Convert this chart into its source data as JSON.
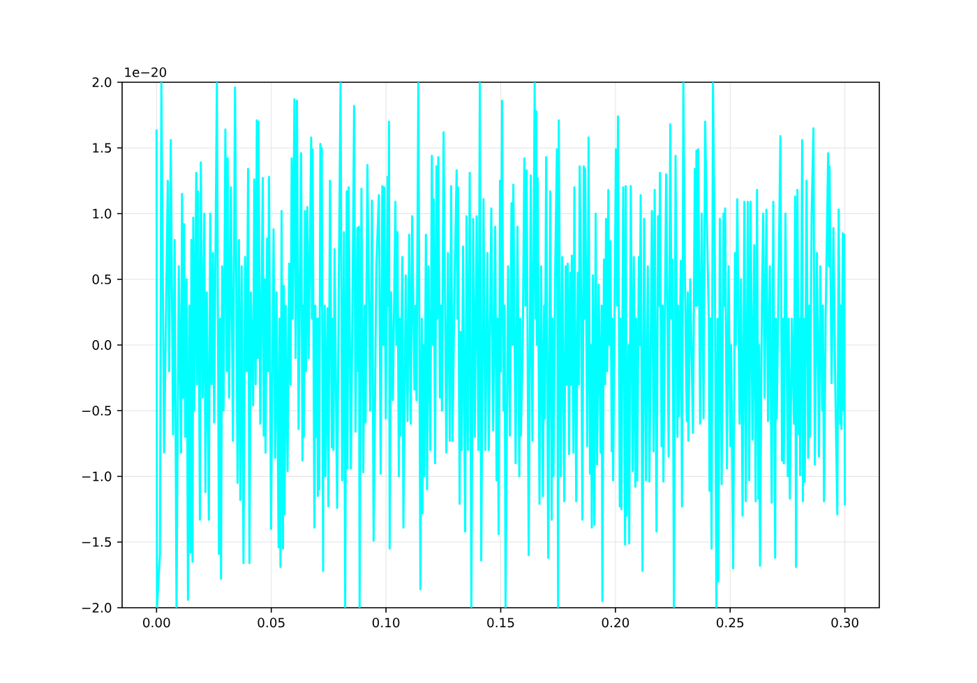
{
  "chart_data": {
    "type": "line",
    "color": "#00ffff",
    "line_style": "solid",
    "grid": true,
    "annotations": [
      "1e−20"
    ],
    "xlim": [
      -0.015,
      0.315
    ],
    "ylim": [
      -2,
      2
    ],
    "xticks": [
      {
        "value": 0,
        "label": "0.00"
      },
      {
        "value": 0.05,
        "label": "0.05"
      },
      {
        "value": 0.1,
        "label": "0.10"
      },
      {
        "value": 0.15,
        "label": "0.15"
      },
      {
        "value": 0.2,
        "label": "0.20"
      },
      {
        "value": 0.25,
        "label": "0.25"
      },
      {
        "value": 0.3,
        "label": "0.30"
      }
    ],
    "yticks": [
      {
        "value": -2,
        "label": "−2.0"
      },
      {
        "value": -1.5,
        "label": "−1.5"
      },
      {
        "value": -1,
        "label": "−1.0"
      },
      {
        "value": -0.5,
        "label": "−0.5"
      },
      {
        "value": 0,
        "label": "0.0"
      },
      {
        "value": 0.5,
        "label": "0.5"
      },
      {
        "value": 1,
        "label": "1.0"
      },
      {
        "value": 1.5,
        "label": "1.5"
      },
      {
        "value": 2,
        "label": "2.0"
      }
    ],
    "x": [
      0.0,
      0.0002,
      0.0015,
      0.0021,
      0.0033,
      0.0049,
      0.0055,
      0.0062,
      0.0072,
      0.0079,
      0.0087,
      0.0097,
      0.0107,
      0.0111,
      0.0116,
      0.012,
      0.0125,
      0.0131,
      0.0137,
      0.0143,
      0.0148,
      0.0152,
      0.0157,
      0.016,
      0.0164,
      0.0173,
      0.0176,
      0.0181,
      0.0189,
      0.0193,
      0.0201,
      0.0208,
      0.0213,
      0.0219,
      0.0228,
      0.0234,
      0.024,
      0.0246,
      0.0251,
      0.0256,
      0.0263,
      0.0272,
      0.0277,
      0.0281,
      0.0286,
      0.0292,
      0.03,
      0.0306,
      0.031,
      0.0316,
      0.0324,
      0.0333,
      0.0342,
      0.0353,
      0.0359,
      0.0365,
      0.0371,
      0.0379,
      0.0386,
      0.0393,
      0.0399,
      0.0405,
      0.0411,
      0.0421,
      0.0426,
      0.0432,
      0.0437,
      0.0441,
      0.0444,
      0.0452,
      0.0463,
      0.0467,
      0.0472,
      0.0475,
      0.0482,
      0.0487,
      0.049,
      0.0499,
      0.051,
      0.0517,
      0.0523,
      0.0532,
      0.0536,
      0.054,
      0.0545,
      0.0551,
      0.0555,
      0.0558,
      0.0563,
      0.0571,
      0.0578,
      0.0584,
      0.0589,
      0.0593,
      0.0601,
      0.0606,
      0.0612,
      0.0619,
      0.063,
      0.0636,
      0.0639,
      0.0642,
      0.0647,
      0.0651,
      0.0657,
      0.0663,
      0.0674,
      0.0677,
      0.068,
      0.0688,
      0.0692,
      0.0697,
      0.07,
      0.0703,
      0.0706,
      0.0709,
      0.0714,
      0.0717,
      0.072,
      0.0726,
      0.0727,
      0.073,
      0.0733,
      0.0736,
      0.0745,
      0.0749,
      0.0756,
      0.0764,
      0.0767,
      0.0771,
      0.0776,
      0.0787,
      0.0794,
      0.0802,
      0.0809,
      0.0817,
      0.0822,
      0.0829,
      0.0832,
      0.0837,
      0.0847,
      0.0855,
      0.0861,
      0.0867,
      0.0875,
      0.0879,
      0.0882,
      0.0885,
      0.0893,
      0.0901,
      0.0907,
      0.0911,
      0.0919,
      0.0931,
      0.0939,
      0.0946,
      0.0958,
      0.0969,
      0.0977,
      0.0984,
      0.0989,
      0.0992,
      0.0999,
      0.1007,
      0.101,
      0.1013,
      0.1016,
      0.1022,
      0.103,
      0.1041,
      0.1045,
      0.105,
      0.1056,
      0.1059,
      0.1063,
      0.1071,
      0.1076,
      0.1086,
      0.1094,
      0.1101,
      0.1108,
      0.1114,
      0.1124,
      0.1129,
      0.1133,
      0.1141,
      0.115,
      0.1156,
      0.1159,
      0.1162,
      0.1167,
      0.1174,
      0.1179,
      0.1185,
      0.1193,
      0.12,
      0.1205,
      0.1208,
      0.1214,
      0.122,
      0.1223,
      0.1228,
      0.1235,
      0.1241,
      0.1244,
      0.1251,
      0.1258,
      0.1263,
      0.127,
      0.1278,
      0.1284,
      0.129,
      0.1299,
      0.1308,
      0.1311,
      0.1314,
      0.1321,
      0.1325,
      0.133,
      0.1336,
      0.1345,
      0.1351,
      0.1357,
      0.1365,
      0.1372,
      0.138,
      0.1387,
      0.1395,
      0.1403,
      0.1409,
      0.1415,
      0.1425,
      0.1433,
      0.1442,
      0.1448,
      0.1459,
      0.1467,
      0.1476,
      0.1482,
      0.1486,
      0.1491,
      0.1497,
      0.15,
      0.1506,
      0.1512,
      0.1517,
      0.1521,
      0.1532,
      0.154,
      0.1547,
      0.1552,
      0.1555,
      0.1565,
      0.1573,
      0.1581,
      0.1585,
      0.1588,
      0.1596,
      0.1603,
      0.1608,
      0.1613,
      0.1622,
      0.1631,
      0.1638,
      0.1648,
      0.1652,
      0.1655,
      0.1658,
      0.1661,
      0.1669,
      0.1676,
      0.1684,
      0.1689,
      0.1692,
      0.1698,
      0.1707,
      0.1716,
      0.1722,
      0.1725,
      0.173,
      0.1737,
      0.1745,
      0.175,
      0.1753,
      0.1762,
      0.1768,
      0.1777,
      0.1783,
      0.1788,
      0.1792,
      0.1798,
      0.1803,
      0.1807,
      0.181,
      0.1817,
      0.1821,
      0.1829,
      0.1836,
      0.1841,
      0.1844,
      0.1851,
      0.1856,
      0.1862,
      0.1865,
      0.1868,
      0.1877,
      0.1883,
      0.1889,
      0.1893,
      0.1897,
      0.1902,
      0.1908,
      0.1914,
      0.192,
      0.1927,
      0.1935,
      0.194,
      0.1943,
      0.195,
      0.1955,
      0.1959,
      0.1964,
      0.1969,
      0.1973,
      0.1978,
      0.1984,
      0.1987,
      0.199,
      0.2002,
      0.2007,
      0.2011,
      0.2019,
      0.2023,
      0.2026,
      0.2034,
      0.2042,
      0.2045,
      0.2049,
      0.2057,
      0.206,
      0.2067,
      0.2075,
      0.208,
      0.2087,
      0.209,
      0.2095,
      0.2102,
      0.2106,
      0.211,
      0.2118,
      0.2125,
      0.2133,
      0.2141,
      0.2148,
      0.2159,
      0.2166,
      0.2171,
      0.2179,
      0.2186,
      0.2191,
      0.2194,
      0.2201,
      0.2206,
      0.2209,
      0.2221,
      0.2232,
      0.2239,
      0.2244,
      0.2249,
      0.2255,
      0.2262,
      0.227,
      0.2273,
      0.2277,
      0.2285,
      0.229,
      0.2296,
      0.2303,
      0.2311,
      0.2315,
      0.2318,
      0.2326,
      0.2338,
      0.2346,
      0.235,
      0.2353,
      0.2356,
      0.2361,
      0.2369,
      0.2376,
      0.2384,
      0.2391,
      0.2399,
      0.2407,
      0.241,
      0.2414,
      0.2419,
      0.2425,
      0.2433,
      0.244,
      0.2445,
      0.2449,
      0.2455,
      0.2463,
      0.2471,
      0.2474,
      0.2478,
      0.2486,
      0.2493,
      0.2501,
      0.2504,
      0.2513,
      0.2521,
      0.2525,
      0.2531,
      0.2541,
      0.2547,
      0.2554,
      0.2562,
      0.2568,
      0.2577,
      0.2583,
      0.2589,
      0.2597,
      0.2605,
      0.2611,
      0.2617,
      0.2623,
      0.2626,
      0.263,
      0.2638,
      0.2644,
      0.265,
      0.2658,
      0.2665,
      0.2673,
      0.2681,
      0.2688,
      0.2696,
      0.2699,
      0.2703,
      0.2711,
      0.2719,
      0.2726,
      0.2729,
      0.2734,
      0.2741,
      0.2751,
      0.2755,
      0.276,
      0.2769,
      0.2778,
      0.2783,
      0.2787,
      0.2793,
      0.2799,
      0.2802,
      0.2805,
      0.2814,
      0.2817,
      0.2821,
      0.2825,
      0.2833,
      0.284,
      0.2845,
      0.2848,
      0.2855,
      0.2863,
      0.2869,
      0.2878,
      0.2887,
      0.2893,
      0.2901,
      0.2904,
      0.2909,
      0.2916,
      0.2927,
      0.293,
      0.2933,
      0.2942,
      0.295,
      0.2957,
      0.2967,
      0.2973,
      0.2979,
      0.2982,
      0.2985,
      0.2991,
      0.2994,
      0.2997,
      0.3
    ],
    "values": [
      1.64,
      -2.0,
      -1.59,
      2.0,
      -0.82,
      1.25,
      -0.2,
      1.56,
      -0.68,
      0.8,
      -2.0,
      0.6,
      -0.82,
      1.15,
      -0.4,
      0.92,
      -0.7,
      0.5,
      -1.94,
      0.3,
      -1.58,
      0.8,
      -1.65,
      0.97,
      -0.5,
      1.31,
      -0.3,
      1.17,
      -1.33,
      1.39,
      -0.4,
      1.0,
      -1.12,
      0.4,
      -1.33,
      1.0,
      -0.3,
      0.7,
      -0.59,
      0.5,
      2.0,
      -1.59,
      0.2,
      -1.78,
      0.6,
      -0.5,
      1.64,
      -0.2,
      1.42,
      -0.4,
      1.2,
      -0.73,
      1.96,
      -1.05,
      0.8,
      -1.18,
      0.6,
      -1.66,
      0.67,
      -0.2,
      1.34,
      -1.66,
      0.4,
      -0.46,
      1.26,
      -0.3,
      1.71,
      -0.1,
      1.7,
      -0.6,
      1.27,
      -0.69,
      0.5,
      -0.82,
      0.81,
      -0.2,
      1.28,
      -1.4,
      0.88,
      -0.86,
      0.4,
      -1.54,
      0.2,
      -1.69,
      1.02,
      -1.55,
      0.45,
      -1.29,
      0.3,
      -0.96,
      0.62,
      -0.3,
      1.42,
      0.2,
      1.87,
      -0.1,
      1.86,
      -0.64,
      1.46,
      -0.88,
      0.3,
      -0.7,
      1.02,
      -0.2,
      1.05,
      -0.1,
      1.58,
      0.2,
      1.49,
      -1.39,
      0.3,
      -0.7,
      0.2,
      -1.15,
      0.2,
      -1.1,
      1.53,
      0.3,
      1.5,
      -1.72,
      0.0,
      -1.0,
      0.3,
      -1.0,
      0.28,
      -1.23,
      1.25,
      -0.78,
      0.2,
      -0.8,
      0.73,
      -1.24,
      0.4,
      2.0,
      -1.03,
      0.86,
      -2.0,
      1.17,
      -0.94,
      1.2,
      -0.94,
      0.5,
      1.82,
      -0.66,
      0.89,
      -0.2,
      0.9,
      -2.0,
      1.19,
      -0.97,
      0.3,
      -0.59,
      1.37,
      -0.5,
      1.1,
      -1.49,
      0.6,
      1.14,
      -0.98,
      1.21,
      0.0,
      1.2,
      -0.56,
      1.28,
      0.3,
      1.7,
      -1.55,
      0.4,
      -0.42,
      1.09,
      0.0,
      0.86,
      -1.0,
      0.2,
      -0.69,
      0.67,
      -1.39,
      0.53,
      -0.58,
      0.84,
      -0.6,
      0.98,
      -0.34,
      0.3,
      -0.42,
      2.0,
      -1.86,
      0.2,
      -1.28,
      0.0,
      -1.0,
      0.84,
      -1.1,
      0.6,
      -0.8,
      1.44,
      0.0,
      1.11,
      -0.9,
      1.36,
      0.2,
      1.43,
      -0.4,
      0.3,
      -0.5,
      1.62,
      0.2,
      -0.82,
      0.7,
      -0.73,
      1.21,
      -0.73,
      0.5,
      1.33,
      0.2,
      1.2,
      -1.21,
      0.1,
      -0.8,
      0.75,
      -1.42,
      0.98,
      -0.8,
      1.31,
      -2.0,
      0.96,
      -0.7,
      0.98,
      -0.8,
      2.0,
      -1.64,
      1.11,
      -0.8,
      0.7,
      -0.8,
      1.04,
      -0.65,
      0.9,
      -1.03,
      0.2,
      -1.44,
      1.25,
      -0.2,
      1.86,
      -0.5,
      0.3,
      -2.0,
      0.6,
      -0.69,
      1.08,
      0.0,
      1.22,
      -0.9,
      0.9,
      -1.0,
      0.2,
      -0.69,
      0.0,
      1.42,
      0.3,
      1.33,
      -1.6,
      1.29,
      -0.73,
      2.0,
      0.2,
      1.78,
      0.0,
      1.27,
      -1.21,
      0.6,
      -1.15,
      0.3,
      -0.56,
      1.43,
      -1.62,
      1.17,
      -1.33,
      0.2,
      -1.0,
      0.53,
      1.49,
      -2.0,
      1.71,
      -1.0,
      0.67,
      -1.19,
      0.6,
      -0.3,
      0.62,
      -0.83,
      0.55,
      -0.3,
      0.68,
      -0.82,
      1.2,
      -1.19,
      0.55,
      -0.3,
      1.36,
      0.3,
      -1.33,
      1.36,
      0.2,
      1.34,
      -0.77,
      1.58,
      -0.98,
      0.0,
      -1.39,
      0.53,
      -1.37,
      1.0,
      -0.91,
      0.46,
      -0.82,
      0.3,
      -1.95,
      0.65,
      -0.3,
      0.96,
      -0.2,
      1.18,
      0.0,
      0.79,
      -0.81,
      0.2,
      -1.03,
      1.49,
      0.3,
      1.74,
      -1.23,
      0.2,
      -1.25,
      1.2,
      -1.52,
      1.21,
      -1.3,
      0.0,
      -1.51,
      1.21,
      -0.96,
      0.67,
      -1.08,
      0.2,
      -1.03,
      0.67,
      0.0,
      1.14,
      -1.72,
      0.96,
      -1.03,
      0.6,
      -1.04,
      1.02,
      -0.81,
      1.18,
      -1.42,
      0.98,
      0.3,
      1.31,
      -0.77,
      0.3,
      -1.04,
      1.3,
      -0.85,
      1.68,
      0.2,
      0.65,
      -2.0,
      1.44,
      -0.7,
      0.3,
      -0.54,
      0.64,
      -1.23,
      2.0,
      0.5,
      -0.58,
      0.4,
      -0.73,
      0.5,
      -0.67,
      1.34,
      0.3,
      1.48,
      0.3,
      1.49,
      -0.6,
      1.0,
      -0.56,
      1.7,
      0.88,
      0.2,
      -1.11,
      0.2,
      -1.55,
      2.0,
      0.67,
      -2.0,
      0.2,
      -1.8,
      0.96,
      -1.06,
      1.0,
      0.3,
      1.04,
      -0.94,
      0.6,
      -0.77,
      0.0,
      -1.7,
      0.7,
      0.0,
      1.11,
      -0.6,
      0.5,
      -1.3,
      1.09,
      -1.19,
      1.09,
      -1.03,
      1.09,
      -0.72,
      0.76,
      -1.19,
      1.18,
      -1.17,
      0.0,
      -1.68,
      0.3,
      1.0,
      -0.4,
      1.03,
      -0.58,
      0.6,
      -1.2,
      1.09,
      -1.62,
      0.2,
      -0.56,
      0.5,
      1.59,
      -0.88,
      0.2,
      -0.9,
      1.0,
      -1.0,
      0.2,
      -1.17,
      0.2,
      -0.6,
      1.13,
      -1.69,
      1.18,
      -0.68,
      0.2,
      -0.99,
      1.56,
      -1.19,
      0.2,
      -1.04,
      1.25,
      -0.86,
      0.3,
      -0.7,
      1.0,
      1.65,
      -0.91,
      0.7,
      -0.85,
      0.6,
      -0.5,
      0.3,
      -1.19,
      0.2,
      1.46,
      0.6,
      1.36,
      -0.29,
      0.89,
      -0.18,
      -1.29,
      1.03,
      -0.6,
      0.3,
      -0.64,
      0.85,
      -0.5,
      0.84,
      -1.22
    ]
  }
}
